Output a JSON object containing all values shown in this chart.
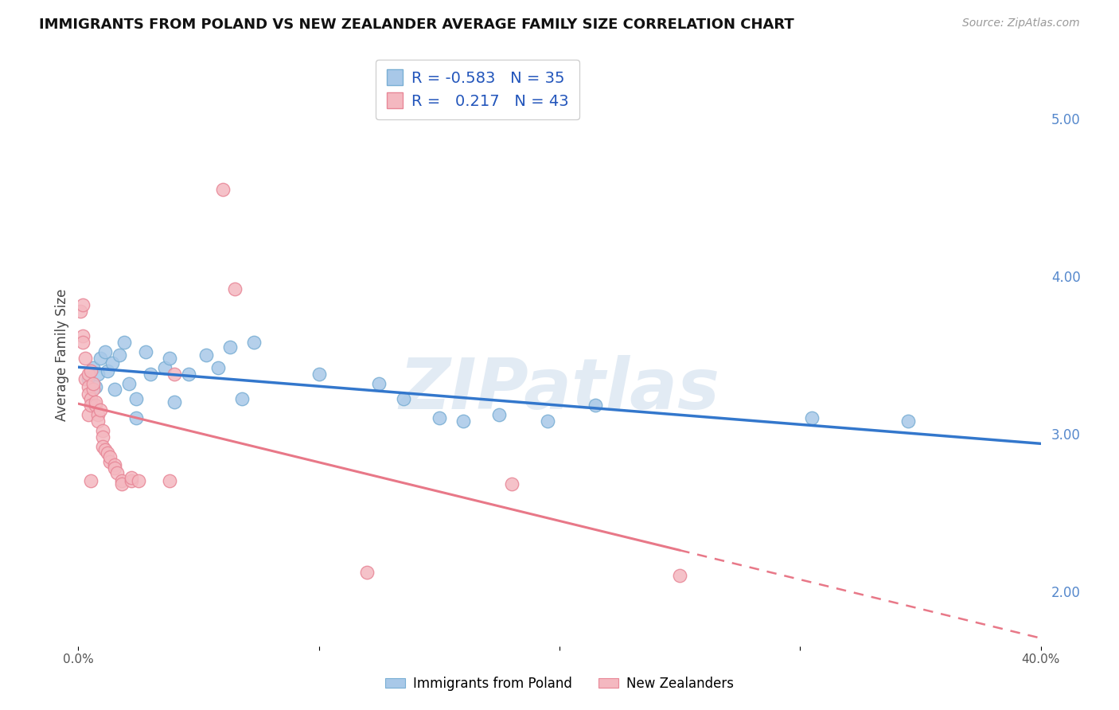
{
  "title": "IMMIGRANTS FROM POLAND VS NEW ZEALANDER AVERAGE FAMILY SIZE CORRELATION CHART",
  "source": "Source: ZipAtlas.com",
  "ylabel": "Average Family Size",
  "xlim": [
    0.0,
    0.4
  ],
  "ylim": [
    1.65,
    5.35
  ],
  "yticks_right": [
    2.0,
    3.0,
    4.0,
    5.0
  ],
  "legend_blue_r": "-0.583",
  "legend_blue_n": "35",
  "legend_pink_r": "0.217",
  "legend_pink_n": "43",
  "legend_label_blue": "Immigrants from Poland",
  "legend_label_pink": "New Zealanders",
  "blue_color": "#a8c8e8",
  "pink_color": "#f4b8c0",
  "blue_scatter_edge": "#7aafd4",
  "pink_scatter_edge": "#e88898",
  "blue_line_color": "#3377cc",
  "pink_line_color": "#e87888",
  "blue_points": [
    [
      0.004,
      3.35
    ],
    [
      0.006,
      3.42
    ],
    [
      0.007,
      3.3
    ],
    [
      0.008,
      3.38
    ],
    [
      0.009,
      3.48
    ],
    [
      0.011,
      3.52
    ],
    [
      0.012,
      3.4
    ],
    [
      0.014,
      3.45
    ],
    [
      0.015,
      3.28
    ],
    [
      0.017,
      3.5
    ],
    [
      0.019,
      3.58
    ],
    [
      0.021,
      3.32
    ],
    [
      0.024,
      3.22
    ],
    [
      0.024,
      3.1
    ],
    [
      0.028,
      3.52
    ],
    [
      0.03,
      3.38
    ],
    [
      0.036,
      3.42
    ],
    [
      0.038,
      3.48
    ],
    [
      0.04,
      3.2
    ],
    [
      0.046,
      3.38
    ],
    [
      0.053,
      3.5
    ],
    [
      0.058,
      3.42
    ],
    [
      0.063,
      3.55
    ],
    [
      0.068,
      3.22
    ],
    [
      0.073,
      3.58
    ],
    [
      0.1,
      3.38
    ],
    [
      0.125,
      3.32
    ],
    [
      0.135,
      3.22
    ],
    [
      0.15,
      3.1
    ],
    [
      0.16,
      3.08
    ],
    [
      0.175,
      3.12
    ],
    [
      0.195,
      3.08
    ],
    [
      0.215,
      3.18
    ],
    [
      0.305,
      3.1
    ],
    [
      0.345,
      3.08
    ]
  ],
  "pink_points": [
    [
      0.001,
      3.78
    ],
    [
      0.002,
      3.82
    ],
    [
      0.002,
      3.62
    ],
    [
      0.002,
      3.58
    ],
    [
      0.003,
      3.35
    ],
    [
      0.003,
      3.48
    ],
    [
      0.004,
      3.38
    ],
    [
      0.004,
      3.3
    ],
    [
      0.004,
      3.25
    ],
    [
      0.004,
      3.12
    ],
    [
      0.005,
      3.4
    ],
    [
      0.005,
      3.22
    ],
    [
      0.005,
      3.18
    ],
    [
      0.005,
      2.7
    ],
    [
      0.006,
      3.28
    ],
    [
      0.006,
      3.32
    ],
    [
      0.007,
      3.18
    ],
    [
      0.007,
      3.2
    ],
    [
      0.008,
      3.12
    ],
    [
      0.008,
      3.08
    ],
    [
      0.009,
      3.15
    ],
    [
      0.01,
      3.02
    ],
    [
      0.01,
      2.98
    ],
    [
      0.01,
      2.92
    ],
    [
      0.011,
      2.9
    ],
    [
      0.012,
      2.88
    ],
    [
      0.013,
      2.82
    ],
    [
      0.013,
      2.85
    ],
    [
      0.015,
      2.8
    ],
    [
      0.015,
      2.78
    ],
    [
      0.016,
      2.75
    ],
    [
      0.018,
      2.7
    ],
    [
      0.018,
      2.68
    ],
    [
      0.022,
      2.7
    ],
    [
      0.022,
      2.72
    ],
    [
      0.025,
      2.7
    ],
    [
      0.038,
      2.7
    ],
    [
      0.04,
      3.38
    ],
    [
      0.06,
      4.55
    ],
    [
      0.065,
      3.92
    ],
    [
      0.12,
      2.12
    ],
    [
      0.18,
      2.68
    ],
    [
      0.25,
      2.1
    ]
  ],
  "background_color": "#ffffff",
  "grid_color": "#dddddd",
  "watermark_text": "ZIPatlas",
  "watermark_color": "#c0d4e8",
  "watermark_alpha": 0.45
}
